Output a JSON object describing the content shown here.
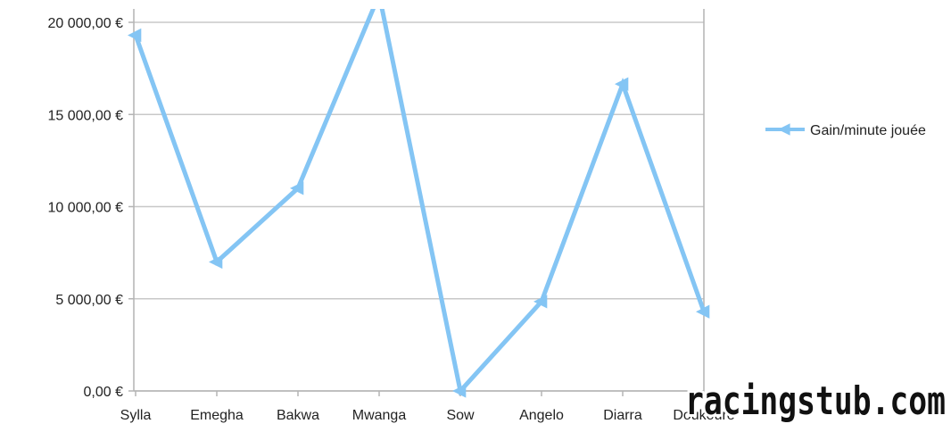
{
  "chart_data": {
    "type": "line",
    "categories": [
      "Sylla",
      "Emegha",
      "Bakwa",
      "Mwanga",
      "Sow",
      "Angelo",
      "Diarra",
      "Doukouré"
    ],
    "series": [
      {
        "name": "Gain/minute jouée",
        "values": [
          19300,
          7000,
          11000,
          21500,
          0,
          4850,
          16650,
          4300
        ]
      }
    ],
    "y_ticks": [
      0,
      5000,
      10000,
      15000,
      20000
    ],
    "y_tick_labels": [
      "0,00 €",
      "5 000,00 €",
      "10 000,00 €",
      "15 000,00 €",
      "20 000,00 €"
    ],
    "ylim": [
      0,
      20000
    ],
    "grid": true,
    "legend": "right",
    "title": "",
    "xlabel": "",
    "ylabel": "",
    "colors": {
      "series": "#84c5f4",
      "grid": "#c8c8c8",
      "axis": "#b4b4b4"
    }
  },
  "watermark": {
    "text": "racingstub.com"
  }
}
